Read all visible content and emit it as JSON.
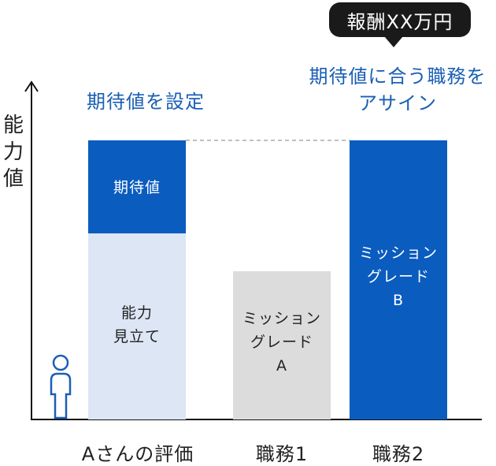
{
  "bubble": {
    "text": "報酬XX万円"
  },
  "annotations": {
    "left": "期待値を設定",
    "right_line1": "期待値に合う職務を",
    "right_line2": "アサイン"
  },
  "y_axis": {
    "label_chars": [
      "能",
      "力",
      "値"
    ]
  },
  "bars": {
    "expected": {
      "label": "期待値"
    },
    "ability": {
      "line1": "能力",
      "line2": "見立て"
    },
    "job1": {
      "line1": "ミッション",
      "line2": "グレード",
      "line3": "A"
    },
    "job2": {
      "line1": "ミッション",
      "line2": "グレード",
      "line3": "B"
    }
  },
  "x_labels": {
    "a": "Aさんの評価",
    "job1": "職務1",
    "job2": "職務2"
  },
  "colors": {
    "dark_blue": "#0a5cbf",
    "light_blue": "#dce6f4",
    "gray": "#dcdcdc",
    "text_blue": "#1a5fb4"
  }
}
